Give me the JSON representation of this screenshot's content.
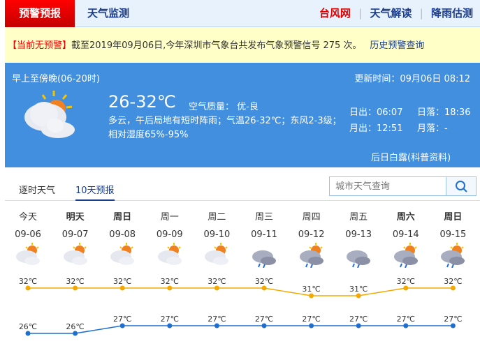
{
  "nav": {
    "warning_tab": "预警预报",
    "monitor_tab": "天气监测",
    "links": [
      {
        "label": "台风网",
        "color": "#e00000"
      },
      {
        "label": "天气解读",
        "color": "#1a3d8f"
      },
      {
        "label": "降雨估测",
        "color": "#1a3d8f"
      }
    ]
  },
  "alert": {
    "status": "【当前无预警】",
    "text": "截至2019年09月06日,今年深圳市气象台共发布气象预警信号 275 次。",
    "history_link": "历史预警查询"
  },
  "current": {
    "period": "早上至傍晚(06-20时)",
    "update_time": "更新时间：09月06日 08:12",
    "temp_range": "26-32℃",
    "air_quality": "空气质量： 优-良",
    "description": "多云，午后局地有短时阵雨；气温26-32℃；东风2-3级；相对湿度65%-95%",
    "sunrise": "日出：06:07",
    "sunset": "日落：18:36",
    "moonrise": "月出：12:51",
    "moonset": "月落：-",
    "science_link": "后日白露(科普资料)",
    "icon": "partly-cloudy-icon"
  },
  "tabs": {
    "hourly": "逐时天气",
    "ten_day": "10天预报",
    "active": "10天预报"
  },
  "search": {
    "placeholder": "城市天气查询"
  },
  "chart_data": {
    "type": "line",
    "categories": [
      "09-06",
      "09-07",
      "09-08",
      "09-09",
      "09-10",
      "09-11",
      "09-12",
      "09-13",
      "09-14",
      "09-15"
    ],
    "weekdays": [
      "今天",
      "明天",
      "周日",
      "周一",
      "周二",
      "周三",
      "周四",
      "周五",
      "周六",
      "周日"
    ],
    "icons": [
      "partly-cloudy",
      "partly-cloudy",
      "partly-cloudy",
      "partly-cloudy",
      "partly-cloudy",
      "cloudy-rain",
      "partly-cloudy-rain",
      "cloudy-rain",
      "partly-cloudy-rain",
      "partly-cloudy-rain"
    ],
    "series": [
      {
        "values": [
          32,
          32,
          32,
          32,
          32,
          32,
          31,
          31,
          32,
          32
        ],
        "color": "#f5a900"
      },
      {
        "values": [
          26,
          26,
          27,
          27,
          27,
          27,
          27,
          27,
          27,
          27
        ],
        "color": "#1e6fcf"
      }
    ],
    "unit": "℃"
  }
}
